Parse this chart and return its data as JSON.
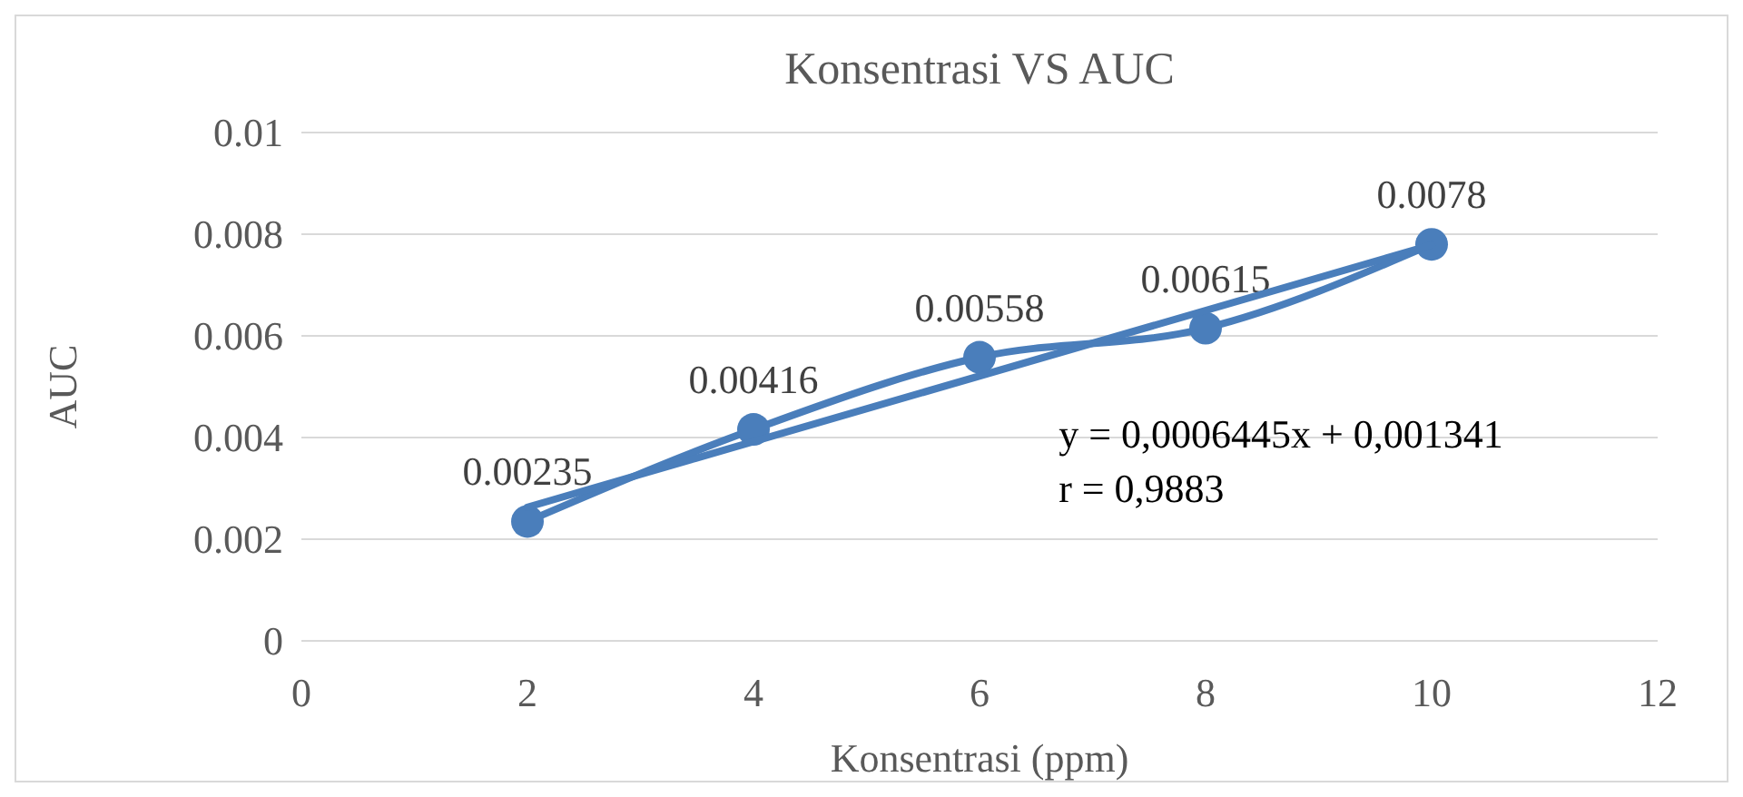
{
  "chart_data": {
    "type": "line",
    "title": "Konsentrasi VS AUC",
    "xlabel": "Konsentrasi (ppm)",
    "ylabel": "AUC",
    "x": [
      2,
      4,
      6,
      8,
      10
    ],
    "series": [
      {
        "color": "#4a7ebb",
        "values": [
          0.00235,
          0.00416,
          0.00558,
          0.00615,
          0.0078
        ],
        "marker": "circle",
        "data_labels": true
      },
      {
        "type": "line",
        "color": "#4a7ebb",
        "x": [
          2,
          10
        ],
        "values": [
          0.00263,
          0.00779
        ],
        "marker": "none"
      }
    ],
    "xlim": [
      0,
      12
    ],
    "xticks": [
      0,
      2,
      4,
      6,
      8,
      10,
      12
    ],
    "ylim": [
      0,
      0.01
    ],
    "yticks": [
      0,
      0.002,
      0.004,
      0.006,
      0.008,
      0.01
    ],
    "grid": "y",
    "annotations": [
      "y = 0,0006445x + 0,001341",
      "r = 0,9883"
    ]
  }
}
